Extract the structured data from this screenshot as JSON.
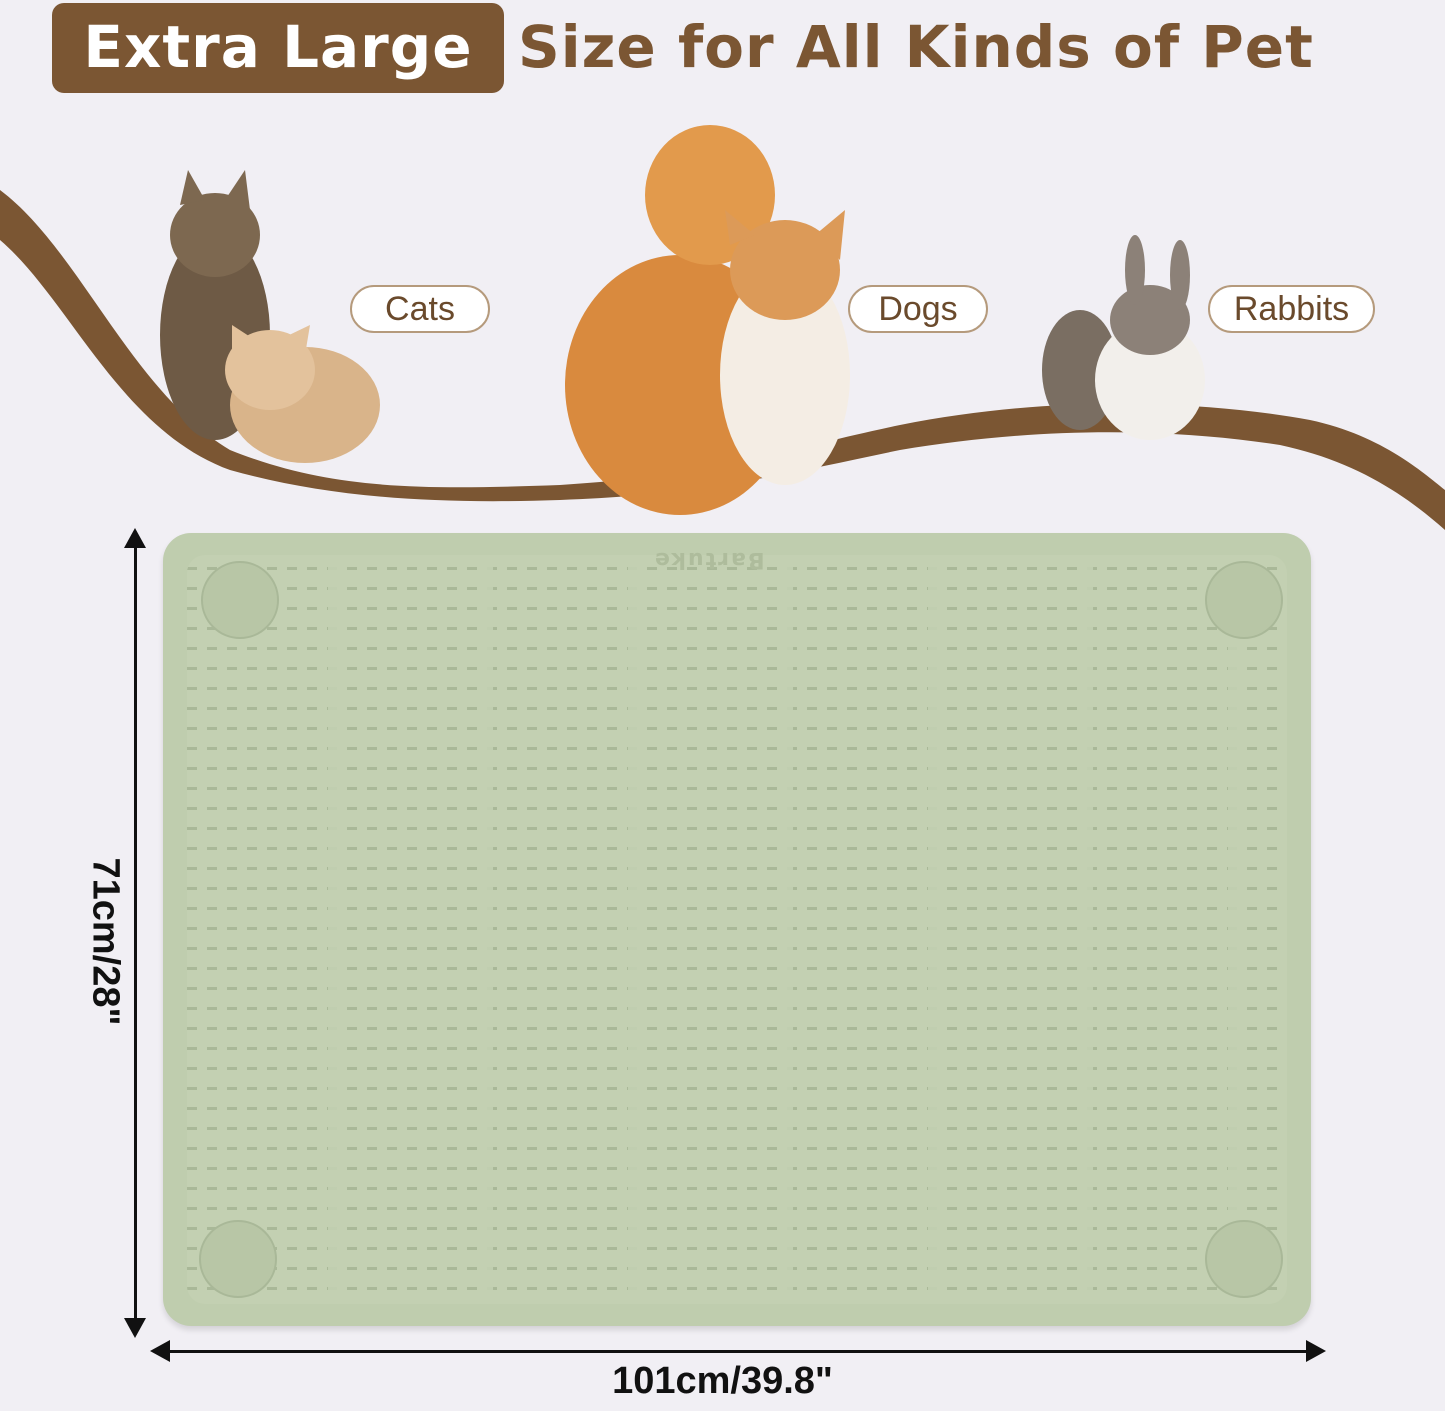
{
  "header": {
    "highlight": "Extra Large",
    "headline": "Size for All Kinds of Pet"
  },
  "pets": [
    {
      "label": "Cats"
    },
    {
      "label": "Dogs"
    },
    {
      "label": "Rabbits"
    }
  ],
  "product": {
    "brand_logo": "Bartuke",
    "color": "#c3d0b2"
  },
  "dimensions": {
    "height": "71cm/28\"",
    "width": "101cm/39.8\""
  },
  "colors": {
    "brand_brown": "#7b5633",
    "background": "#f1eff4"
  }
}
